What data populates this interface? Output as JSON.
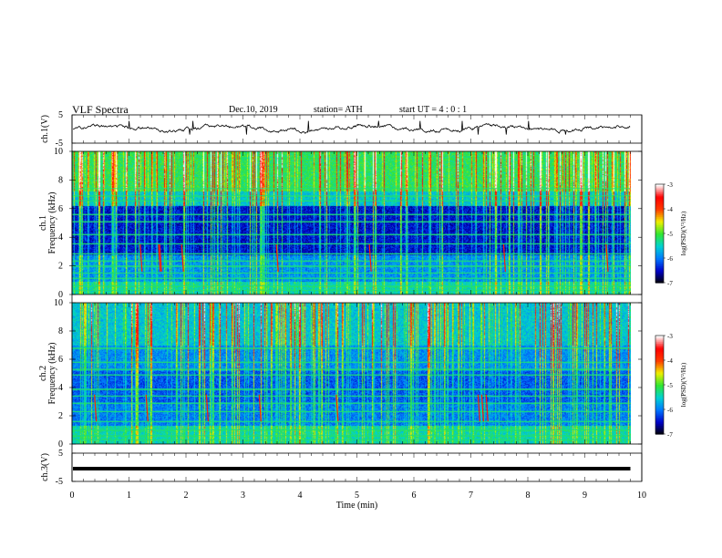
{
  "header": {
    "title": "VLF  Spectra",
    "date": "Dec.10, 2019",
    "station": "station= ATH",
    "start": "start  UT  =   4  : 0   : 1"
  },
  "chart_data": [
    {
      "type": "line",
      "name": "ch1-waveform",
      "ylabel": "ch.1(V)",
      "ylim": [
        -5,
        5
      ],
      "yticks": [
        "5",
        "-5"
      ],
      "x_range_min": [
        0,
        9.8
      ],
      "mean_value_V": 0.3,
      "color": "#000000"
    },
    {
      "type": "heatmap",
      "name": "ch1-spectrogram",
      "ylabel_channel": "ch.1",
      "ylabel": "Frequency  (kHz)",
      "ylim": [
        0,
        10
      ],
      "yticks": [
        "0",
        "2",
        "4",
        "6",
        "8",
        "10"
      ],
      "x_range_min": [
        0,
        9.8
      ],
      "colorbar": {
        "label": "log(PSD)(V²/Hz)",
        "range": [
          -7,
          -3
        ],
        "ticks": [
          "-3",
          "-4",
          "-5",
          "-6",
          "-7"
        ],
        "colors": [
          "#000000",
          "#0000c8",
          "#0078ff",
          "#00d2d2",
          "#32e632",
          "#f0f000",
          "#ff3c00",
          "#ff0000",
          "#ffffff"
        ]
      },
      "hum_lines_kHz": [
        0.3,
        0.6,
        1.15,
        1.5,
        2.0,
        2.35,
        2.85,
        3.55,
        4.2,
        5.1,
        5.6,
        6.55,
        6.9,
        7.4
      ]
    },
    {
      "type": "heatmap",
      "name": "ch2-spectrogram",
      "ylabel_channel": "ch.2",
      "ylabel": "Frequency  (kHz)",
      "ylim": [
        0,
        10
      ],
      "yticks": [
        "0",
        "2",
        "4",
        "6",
        "8",
        "10"
      ],
      "x_range_min": [
        0,
        9.8
      ],
      "colorbar": {
        "label": "log(PSD)(V²/Hz)",
        "range": [
          -7,
          -3
        ],
        "ticks": [
          "-3",
          "-4",
          "-5",
          "-6",
          "-7"
        ],
        "colors": [
          "#000000",
          "#0000c8",
          "#0078ff",
          "#00d2d2",
          "#32e632",
          "#f0f000",
          "#ff3c00",
          "#ff0000",
          "#ffffff"
        ]
      },
      "hum_lines_kHz": [
        0.3,
        0.6,
        1.0,
        1.6,
        2.3,
        2.9,
        3.4,
        3.9,
        4.9,
        5.3,
        5.8,
        6.8
      ]
    },
    {
      "type": "line",
      "name": "ch3-waveform",
      "ylabel": "ch.3(V)",
      "ylim": [
        -5,
        5
      ],
      "yticks": [
        "5",
        "-5"
      ],
      "x_range_min": [
        0,
        9.8
      ],
      "mean_value_V": -0.5,
      "color": "#000000"
    }
  ],
  "x_axis": {
    "label": "Time  (min)",
    "range": [
      0,
      10
    ],
    "ticks": [
      "0",
      "1",
      "2",
      "3",
      "4",
      "5",
      "6",
      "7",
      "8",
      "9",
      "10"
    ]
  }
}
